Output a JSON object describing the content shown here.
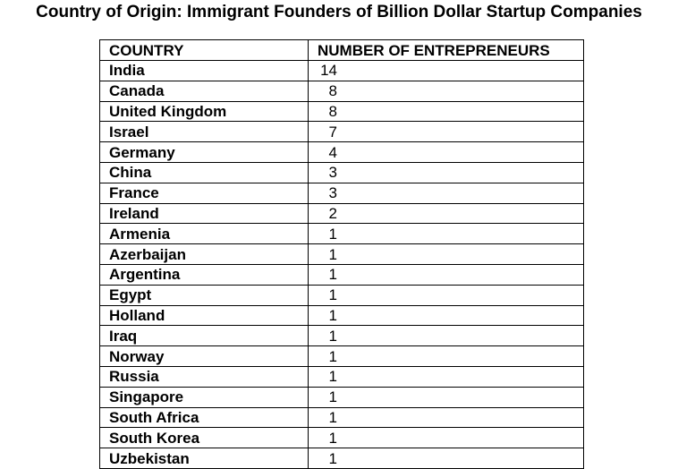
{
  "title": "Country of Origin: Immigrant Founders of Billion Dollar Startup Companies",
  "chart_data": {
    "type": "table",
    "title": "Country of Origin: Immigrant Founders of Billion Dollar Startup Companies",
    "columns": [
      "COUNTRY",
      "NUMBER OF ENTREPRENEURS"
    ],
    "rows": [
      {
        "country": "India",
        "count": "14"
      },
      {
        "country": "Canada",
        "count": "8"
      },
      {
        "country": "United Kingdom",
        "count": "8"
      },
      {
        "country": "Israel",
        "count": "7"
      },
      {
        "country": "Germany",
        "count": "4"
      },
      {
        "country": "China",
        "count": "3"
      },
      {
        "country": "France",
        "count": "3"
      },
      {
        "country": "Ireland",
        "count": "2"
      },
      {
        "country": "Armenia",
        "count": "1"
      },
      {
        "country": "Azerbaijan",
        "count": "1"
      },
      {
        "country": "Argentina",
        "count": "1"
      },
      {
        "country": "Egypt",
        "count": "1"
      },
      {
        "country": "Holland",
        "count": "1"
      },
      {
        "country": "Iraq",
        "count": "1"
      },
      {
        "country": "Norway",
        "count": "1"
      },
      {
        "country": "Russia",
        "count": "1"
      },
      {
        "country": "Singapore",
        "count": "1"
      },
      {
        "country": "South Africa",
        "count": "1"
      },
      {
        "country": "South Korea",
        "count": "1"
      },
      {
        "country": "Uzbekistan",
        "count": "1"
      }
    ]
  }
}
